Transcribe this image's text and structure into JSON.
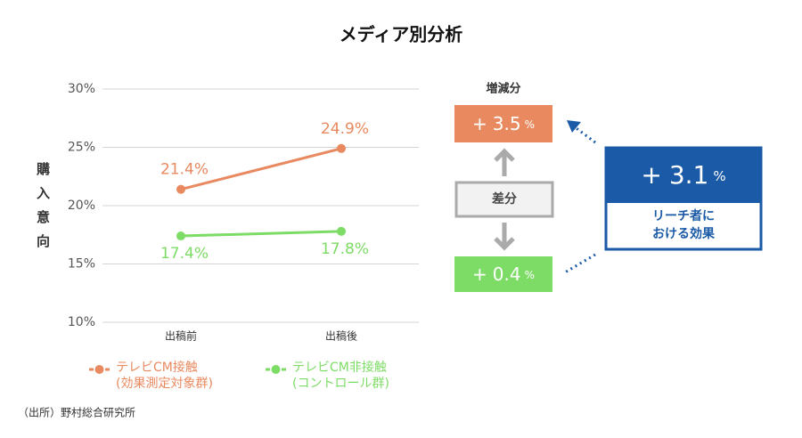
{
  "chart_data": {
    "type": "line",
    "title": "メディア別分析",
    "y_label": "購入意向",
    "categories": [
      "出稿前",
      "出稿後"
    ],
    "series": [
      {
        "name": "テレビCM接触",
        "subname": "(効果測定対象群)",
        "color": "#e8895f",
        "values": [
          21.4,
          24.9
        ],
        "value_labels": [
          "21.4%",
          "24.9%"
        ],
        "label_position": "above"
      },
      {
        "name": "テレビCM非接触",
        "subname": "(コントロール群)",
        "color": "#7ddc66",
        "values": [
          17.4,
          17.8
        ],
        "value_labels": [
          "17.4%",
          "17.8%"
        ],
        "label_position": "below"
      }
    ],
    "ylim": [
      10,
      30
    ],
    "yticks": [
      {
        "value": 10,
        "label": "10%"
      },
      {
        "value": 15,
        "label": "15%"
      },
      {
        "value": 20,
        "label": "20%"
      },
      {
        "value": 25,
        "label": "25%"
      },
      {
        "value": 30,
        "label": "30%"
      }
    ],
    "grid": true
  },
  "panel": {
    "title": "増減分",
    "difference_label": "差分",
    "exposed": {
      "sign": "+",
      "value": 3.5,
      "unit": "%"
    },
    "control": {
      "sign": "+",
      "value": 0.4,
      "unit": "%"
    },
    "reach": {
      "sign": "+",
      "value": 3.1,
      "unit": "%",
      "caption": [
        "リーチ者に",
        "おける効果"
      ]
    }
  },
  "source": "（出所）野村総合研究所"
}
